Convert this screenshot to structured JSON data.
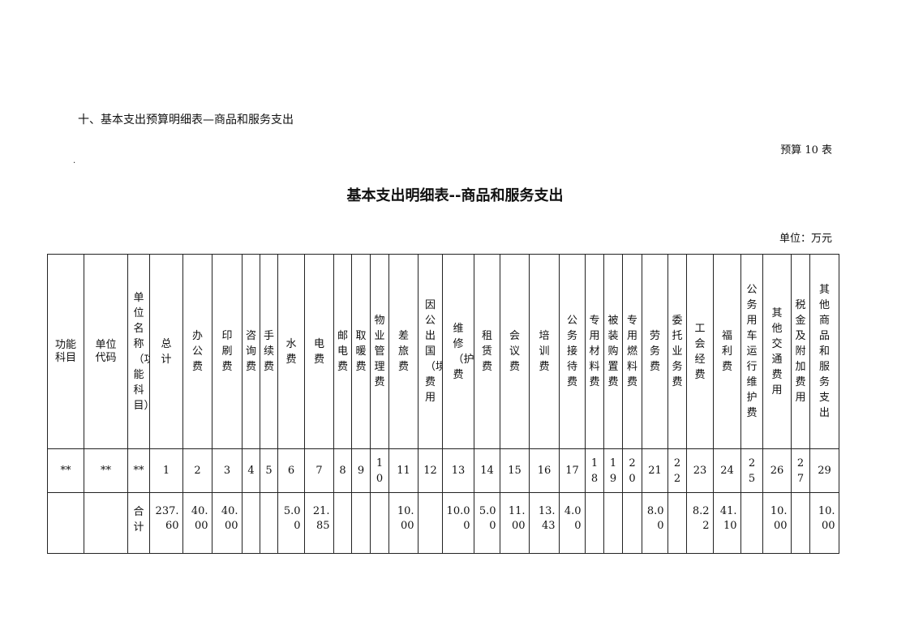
{
  "section_title": "十、基本支出预算明细表—商品和服务支出",
  "table_no": "预算 10 表",
  "dot": ".",
  "title": "基本支出明细表--商品和服务支出",
  "unit": "单位：万元",
  "headers": [
    "功能科目",
    "单位代码",
    "单位名称（功能科目）",
    "总计",
    "办公费",
    "印刷费",
    "咨询费",
    "手续费",
    "水费",
    "电费",
    "邮电费",
    "取暖费",
    "物业管理费",
    "差旅费",
    "因公出国（境）费用",
    "维修（护）费",
    "租赁费",
    "会议费",
    "培训费",
    "公务接待费",
    "专用材料费",
    "被装购置费",
    "专用燃料费",
    "劳务费",
    "委托业务费",
    "工会经费",
    "福利费",
    "公务用车运行维护费",
    "其他交通费用",
    "税金及附加费用",
    "其他商品和服务支出"
  ],
  "index_row": [
    "**",
    "**",
    "**",
    "1",
    "2",
    "3",
    "4",
    "5",
    "6",
    "7",
    "8",
    "9",
    "10",
    "11",
    "12",
    "13",
    "14",
    "15",
    "16",
    "17",
    "18",
    "19",
    "20",
    "21",
    "22",
    "23",
    "24",
    "25",
    "26",
    "27",
    "29"
  ],
  "total_row": [
    "",
    "",
    "合计",
    "237.60",
    "40.00",
    "40.00",
    "",
    "",
    "5.00",
    "21.85",
    "",
    "",
    "",
    "10.00",
    "",
    "10.00",
    "5.00",
    "11.00",
    "13.43",
    "4.00",
    "",
    "",
    "",
    "8.00",
    "",
    "8.22",
    "41.10",
    "",
    "10.00",
    "",
    "10.00"
  ]
}
